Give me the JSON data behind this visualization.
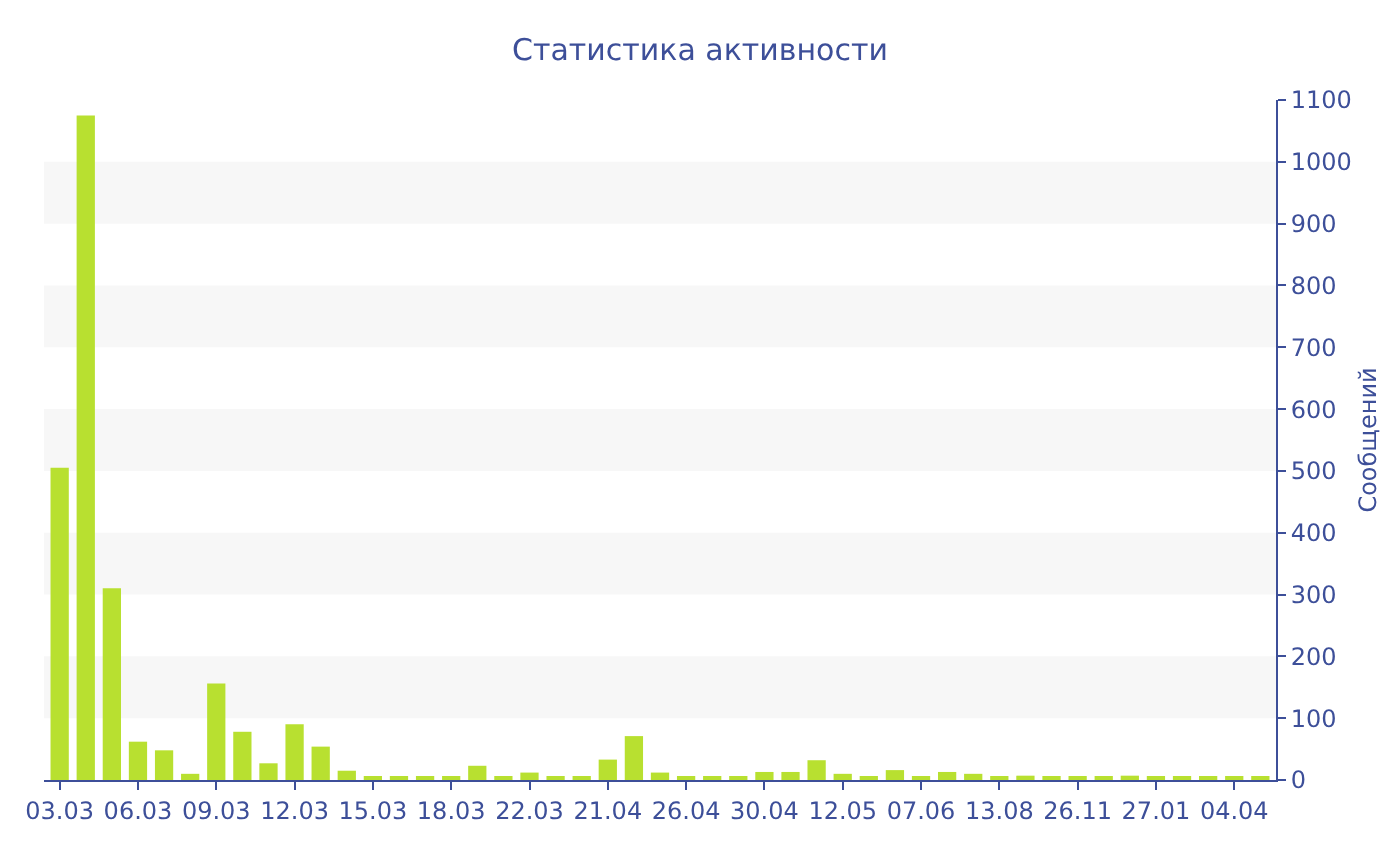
{
  "chart_data": {
    "type": "bar",
    "title": "Статистика активности",
    "ylabel": "Сообщений",
    "categories": [
      "03.03",
      null,
      null,
      "06.03",
      null,
      null,
      "09.03",
      null,
      null,
      "12.03",
      null,
      null,
      "15.03",
      null,
      null,
      "18.03",
      null,
      null,
      "22.03",
      null,
      null,
      "21.04",
      null,
      null,
      "26.04",
      null,
      null,
      "30.04",
      null,
      null,
      "12.05",
      null,
      null,
      "07.06",
      null,
      null,
      "13.08",
      null,
      null,
      "26.11",
      null,
      null,
      "27.01",
      null,
      null,
      "04.04",
      null
    ],
    "values": [
      505,
      1075,
      310,
      62,
      48,
      10,
      156,
      78,
      27,
      90,
      54,
      15,
      6,
      6,
      6,
      4,
      23,
      4,
      12,
      4,
      4,
      33,
      71,
      12,
      5,
      4,
      5,
      13,
      13,
      32,
      10,
      4,
      16,
      4,
      13,
      10,
      6,
      7,
      4,
      4,
      4,
      7,
      5,
      4,
      5,
      4,
      4
    ],
    "color": "#b8e030",
    "ylim": [
      0,
      1100
    ],
    "yticks": [
      0,
      100,
      200,
      300,
      400,
      500,
      600,
      700,
      800,
      900,
      1000,
      1100
    ],
    "bands": [
      {
        "axis": "y",
        "from": 100,
        "to": 200,
        "color": "#f7f7f7"
      },
      {
        "axis": "y",
        "from": 300,
        "to": 400,
        "color": "#f7f7f7"
      },
      {
        "axis": "y",
        "from": 500,
        "to": 600,
        "color": "#f7f7f7"
      },
      {
        "axis": "y",
        "from": 700,
        "to": 800,
        "color": "#f7f7f7"
      },
      {
        "axis": "y",
        "from": 900,
        "to": 1000,
        "color": "#f7f7f7"
      }
    ]
  }
}
